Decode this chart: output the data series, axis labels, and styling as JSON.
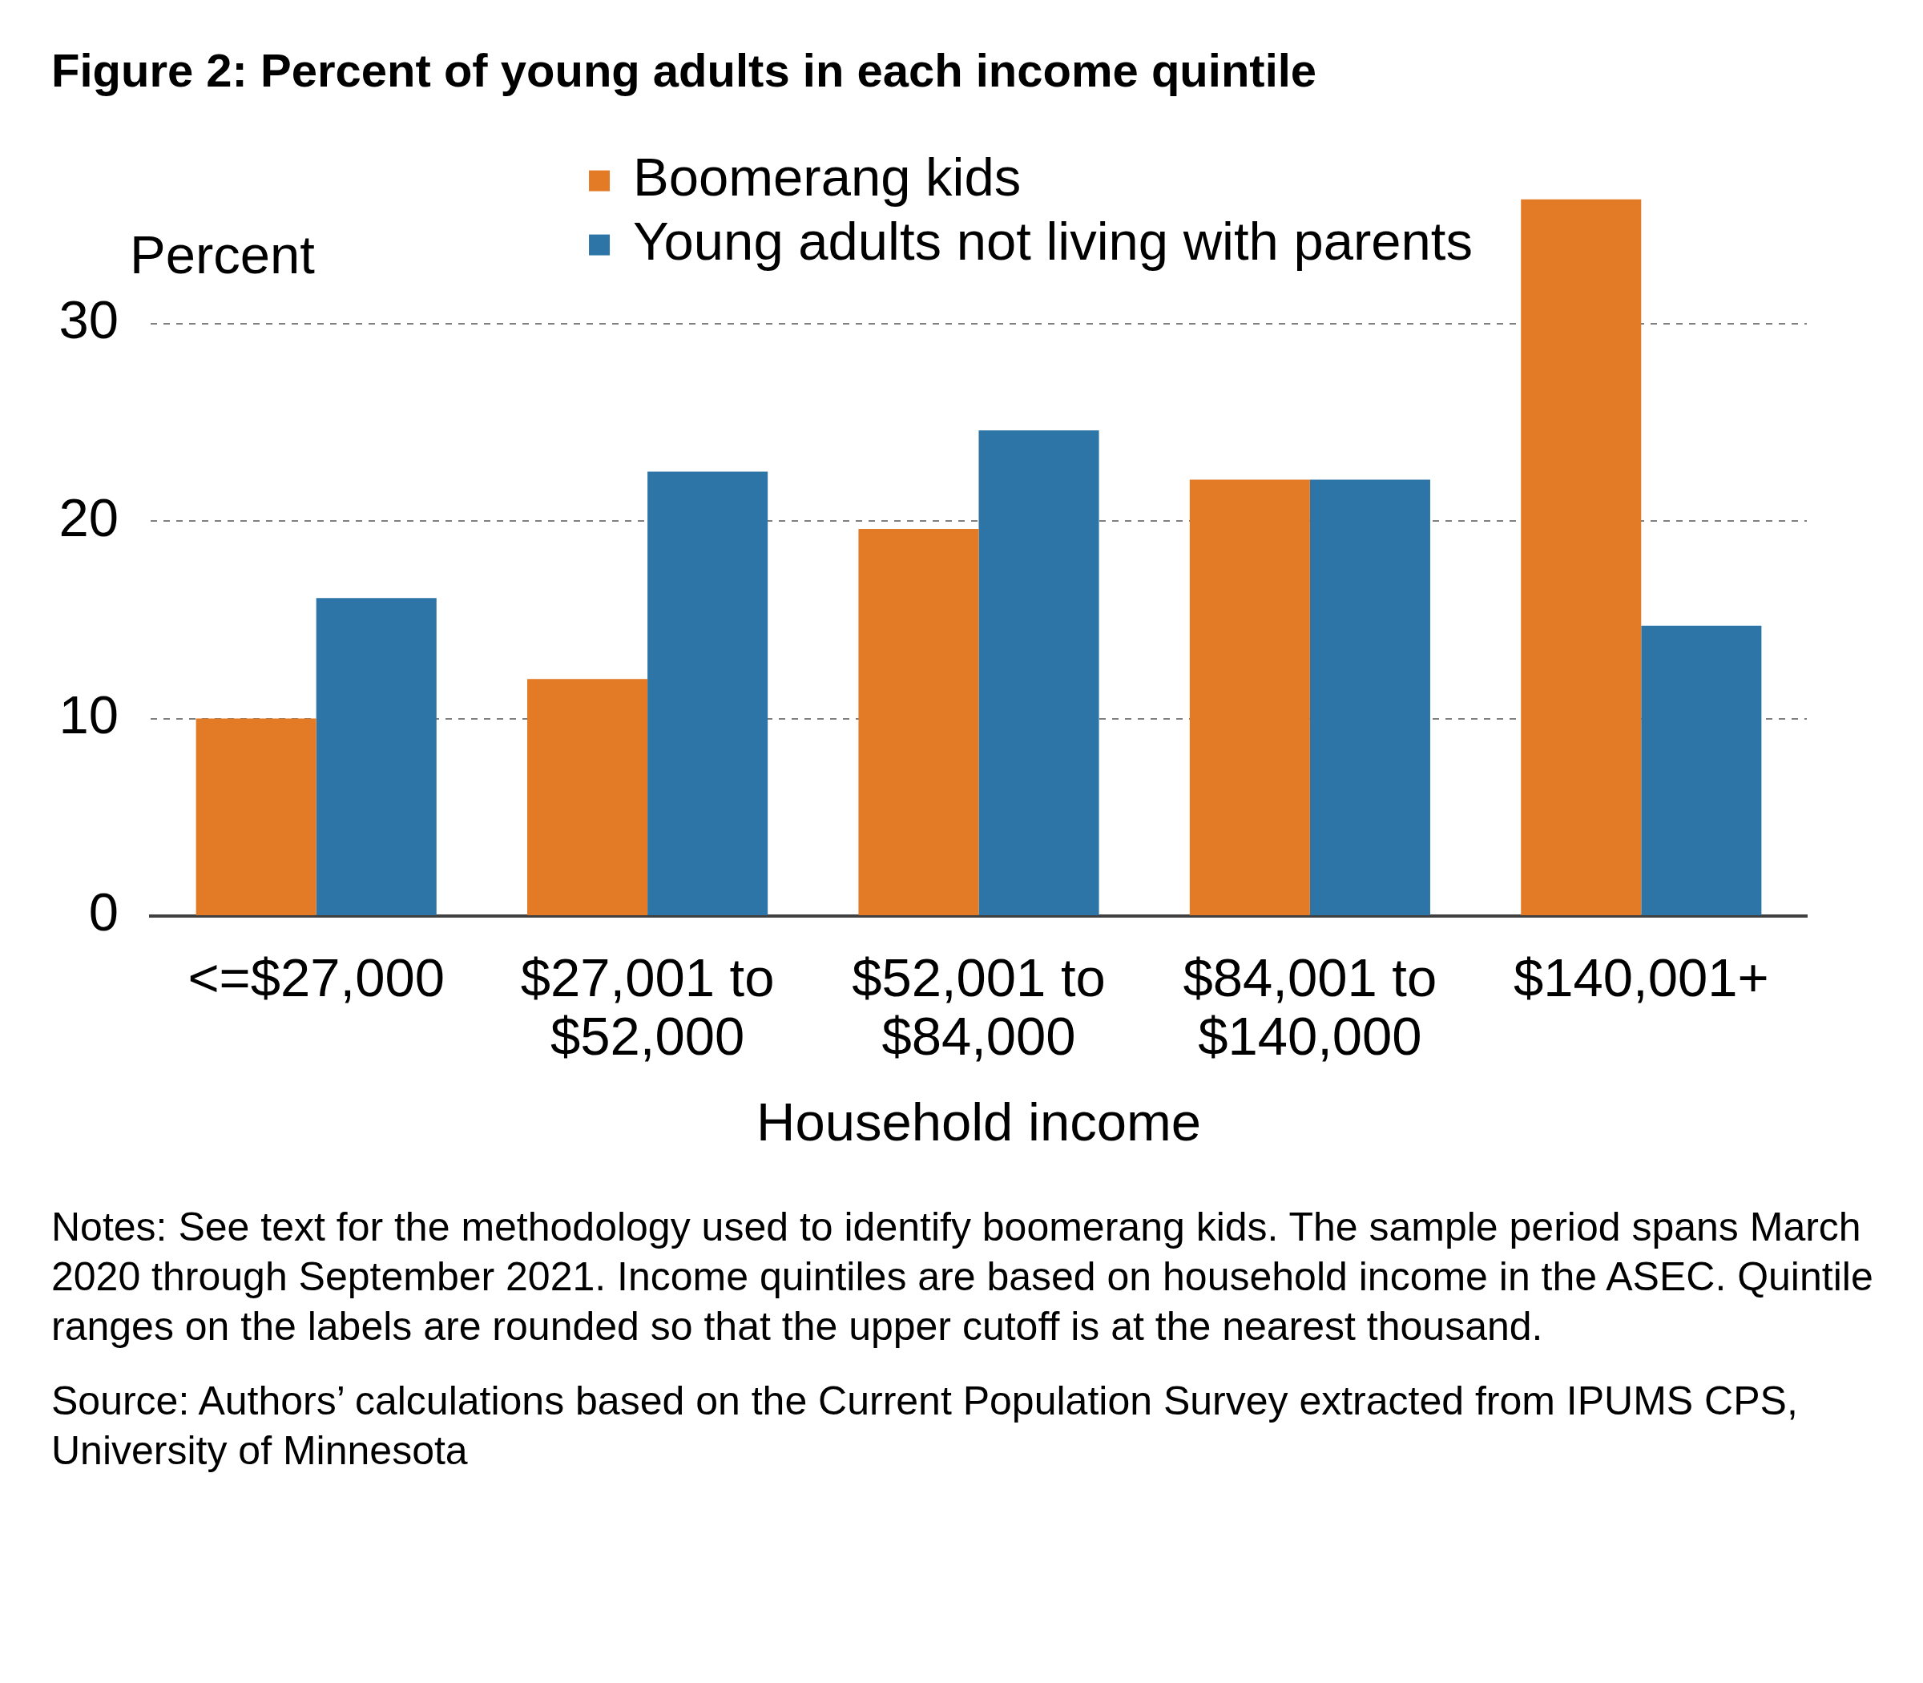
{
  "chart_data": {
    "type": "bar",
    "title": "Figure 2: Percent of young adults in each income quintile",
    "xlabel": "Household income",
    "ylabel": "Percent",
    "categories": [
      "<=$27,000",
      "$27,001 to $52,000",
      "$52,001 to $84,000",
      "$84,001 to $140,000",
      "$140,001+"
    ],
    "series": [
      {
        "name": "Boomerang kids",
        "color": "#e37a26",
        "values": [
          10.0,
          12.0,
          19.6,
          22.1,
          36.3
        ]
      },
      {
        "name": "Young adults not living with parents",
        "color": "#2e75a7",
        "values": [
          16.1,
          22.5,
          24.6,
          22.1,
          14.7
        ]
      }
    ],
    "ylim": [
      0,
      36.3
    ],
    "yticks": [
      0,
      10,
      20,
      30
    ],
    "grid": "y",
    "legend": "top",
    "annotations": [
      "Notes: See text for the methodology used to identify boomerang kids. The sample period spans March 2020 through September 2021. Income quintiles are based on household income in the ASEC. Quintile ranges on the labels are rounded so that the upper cutoff is at the nearest thousand.",
      "Source: Authors’ calculations based on the Current Population Survey extracted from IPUMS CPS, University of Minnesota"
    ]
  }
}
